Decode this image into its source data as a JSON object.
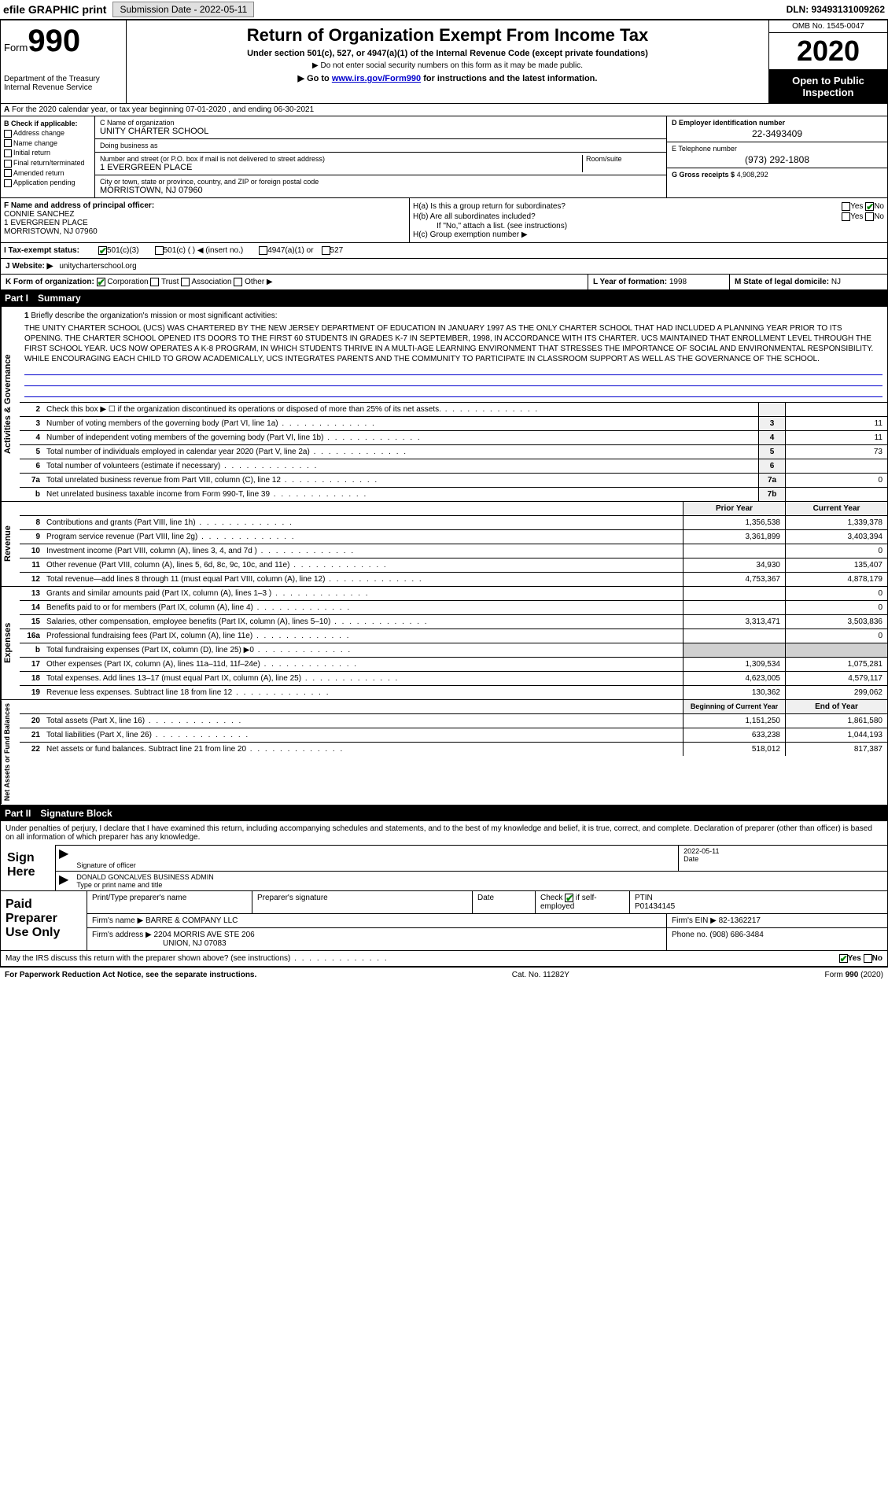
{
  "top": {
    "efile": "efile GRAPHIC print",
    "submission_label": "Submission Date - 2022-05-11",
    "dln": "DLN: 93493131009262"
  },
  "header": {
    "form_prefix": "Form",
    "form_num": "990",
    "dept": "Department of the Treasury\nInternal Revenue Service",
    "title": "Return of Organization Exempt From Income Tax",
    "subtitle": "Under section 501(c), 527, or 4947(a)(1) of the Internal Revenue Code (except private foundations)",
    "note1": "▶ Do not enter social security numbers on this form as it may be made public.",
    "note2_pre": "▶ Go to ",
    "note2_link": "www.irs.gov/Form990",
    "note2_post": " for instructions and the latest information.",
    "omb": "OMB No. 1545-0047",
    "year": "2020",
    "otp": "Open to Public Inspection"
  },
  "row_a": "For the 2020 calendar year, or tax year beginning 07-01-2020   , and ending 06-30-2021",
  "box_b": {
    "label": "B Check if applicable:",
    "items": [
      "Address change",
      "Name change",
      "Initial return",
      "Final return/terminated",
      "Amended return",
      "Application pending"
    ]
  },
  "box_c": {
    "name_label": "C Name of organization",
    "name": "UNITY CHARTER SCHOOL",
    "dba_label": "Doing business as",
    "dba": "",
    "addr_label": "Number and street (or P.O. box if mail is not delivered to street address)",
    "addr": "1 EVERGREEN PLACE",
    "room_label": "Room/suite",
    "city_label": "City or town, state or province, country, and ZIP or foreign postal code",
    "city": "MORRISTOWN, NJ  07960"
  },
  "box_d": {
    "label": "D Employer identification number",
    "val": "22-3493409"
  },
  "box_e": {
    "label": "E Telephone number",
    "val": "(973) 292-1808"
  },
  "box_g": {
    "label": "G Gross receipts $",
    "val": "4,908,292"
  },
  "box_f": {
    "label": "F  Name and address of principal officer:",
    "name": "CONNIE SANCHEZ",
    "addr1": "1 EVERGREEN PLACE",
    "addr2": "MORRISTOWN, NJ  07960"
  },
  "box_h": {
    "a": "H(a)  Is this a group return for subordinates?",
    "b": "H(b)  Are all subordinates included?",
    "b_note": "If \"No,\" attach a list. (see instructions)",
    "c": "H(c)  Group exemption number ▶",
    "yes": "Yes",
    "no": "No"
  },
  "row_i": {
    "label": "I  Tax-exempt status:",
    "opts": [
      "501(c)(3)",
      "501(c) (  ) ◀ (insert no.)",
      "4947(a)(1) or",
      "527"
    ]
  },
  "row_j": {
    "label": "J  Website: ▶",
    "val": "unitycharterschool.org"
  },
  "row_k": {
    "label": "K Form of organization:",
    "opts": [
      "Corporation",
      "Trust",
      "Association",
      "Other ▶"
    ]
  },
  "row_l": {
    "label": "L Year of formation:",
    "val": "1998"
  },
  "row_m": {
    "label": "M State of legal domicile:",
    "val": "NJ"
  },
  "part1": {
    "num": "Part I",
    "title": "Summary"
  },
  "mission": {
    "num": "1",
    "label": "Briefly describe the organization's mission or most significant activities:",
    "text": "THE UNITY CHARTER SCHOOL (UCS) WAS CHARTERED BY THE NEW JERSEY DEPARTMENT OF EDUCATION IN JANUARY 1997 AS THE ONLY CHARTER SCHOOL THAT HAD INCLUDED A PLANNING YEAR PRIOR TO ITS OPENING. THE CHARTER SCHOOL OPENED ITS DOORS TO THE FIRST 60 STUDENTS IN GRADES K-7 IN SEPTEMBER, 1998, IN ACCORDANCE WITH ITS CHARTER. UCS MAINTAINED THAT ENROLLMENT LEVEL THROUGH THE FIRST SCHOOL YEAR. UCS NOW OPERATES A K-8 PROGRAM, IN WHICH STUDENTS THRIVE IN A MULTI-AGE LEARNING ENVIRONMENT THAT STRESSES THE IMPORTANCE OF SOCIAL AND ENVIRONMENTAL RESPONSIBILITY. WHILE ENCOURAGING EACH CHILD TO GROW ACADEMICALLY, UCS INTEGRATES PARENTS AND THE COMMUNITY TO PARTICIPATE IN CLASSROOM SUPPORT AS WELL AS THE GOVERNANCE OF THE SCHOOL."
  },
  "lines_ag": [
    {
      "n": "2",
      "t": "Check this box ▶ ☐ if the organization discontinued its operations or disposed of more than 25% of its net assets.",
      "box": "",
      "v": ""
    },
    {
      "n": "3",
      "t": "Number of voting members of the governing body (Part VI, line 1a)",
      "box": "3",
      "v": "11"
    },
    {
      "n": "4",
      "t": "Number of independent voting members of the governing body (Part VI, line 1b)",
      "box": "4",
      "v": "11"
    },
    {
      "n": "5",
      "t": "Total number of individuals employed in calendar year 2020 (Part V, line 2a)",
      "box": "5",
      "v": "73"
    },
    {
      "n": "6",
      "t": "Total number of volunteers (estimate if necessary)",
      "box": "6",
      "v": ""
    },
    {
      "n": "7a",
      "t": "Total unrelated business revenue from Part VIII, column (C), line 12",
      "box": "7a",
      "v": "0"
    },
    {
      "n": "b",
      "t": "Net unrelated business taxable income from Form 990-T, line 39",
      "box": "7b",
      "v": ""
    }
  ],
  "col_headers": {
    "prior": "Prior Year",
    "current": "Current Year"
  },
  "lines_rev": [
    {
      "n": "8",
      "t": "Contributions and grants (Part VIII, line 1h)",
      "p": "1,356,538",
      "c": "1,339,378"
    },
    {
      "n": "9",
      "t": "Program service revenue (Part VIII, line 2g)",
      "p": "3,361,899",
      "c": "3,403,394"
    },
    {
      "n": "10",
      "t": "Investment income (Part VIII, column (A), lines 3, 4, and 7d )",
      "p": "",
      "c": "0"
    },
    {
      "n": "11",
      "t": "Other revenue (Part VIII, column (A), lines 5, 6d, 8c, 9c, 10c, and 11e)",
      "p": "34,930",
      "c": "135,407"
    },
    {
      "n": "12",
      "t": "Total revenue—add lines 8 through 11 (must equal Part VIII, column (A), line 12)",
      "p": "4,753,367",
      "c": "4,878,179"
    }
  ],
  "lines_exp": [
    {
      "n": "13",
      "t": "Grants and similar amounts paid (Part IX, column (A), lines 1–3 )",
      "p": "",
      "c": "0"
    },
    {
      "n": "14",
      "t": "Benefits paid to or for members (Part IX, column (A), line 4)",
      "p": "",
      "c": "0"
    },
    {
      "n": "15",
      "t": "Salaries, other compensation, employee benefits (Part IX, column (A), lines 5–10)",
      "p": "3,313,471",
      "c": "3,503,836"
    },
    {
      "n": "16a",
      "t": "Professional fundraising fees (Part IX, column (A), line 11e)",
      "p": "",
      "c": "0"
    },
    {
      "n": "b",
      "t": "Total fundraising expenses (Part IX, column (D), line 25) ▶0",
      "p": "—shaded—",
      "c": "—shaded—"
    },
    {
      "n": "17",
      "t": "Other expenses (Part IX, column (A), lines 11a–11d, 11f–24e)",
      "p": "1,309,534",
      "c": "1,075,281"
    },
    {
      "n": "18",
      "t": "Total expenses. Add lines 13–17 (must equal Part IX, column (A), line 25)",
      "p": "4,623,005",
      "c": "4,579,117"
    },
    {
      "n": "19",
      "t": "Revenue less expenses. Subtract line 18 from line 12",
      "p": "130,362",
      "c": "299,062"
    }
  ],
  "col_headers2": {
    "begin": "Beginning of Current Year",
    "end": "End of Year"
  },
  "lines_net": [
    {
      "n": "20",
      "t": "Total assets (Part X, line 16)",
      "p": "1,151,250",
      "c": "1,861,580"
    },
    {
      "n": "21",
      "t": "Total liabilities (Part X, line 26)",
      "p": "633,238",
      "c": "1,044,193"
    },
    {
      "n": "22",
      "t": "Net assets or fund balances. Subtract line 21 from line 20",
      "p": "518,012",
      "c": "817,387"
    }
  ],
  "side_tabs": {
    "ag": "Activities & Governance",
    "rev": "Revenue",
    "exp": "Expenses",
    "net": "Net Assets or Fund Balances"
  },
  "part2": {
    "num": "Part II",
    "title": "Signature Block"
  },
  "sig": {
    "decl": "Under penalties of perjury, I declare that I have examined this return, including accompanying schedules and statements, and to the best of my knowledge and belief, it is true, correct, and complete. Declaration of preparer (other than officer) is based on all information of which preparer has any knowledge.",
    "sign_here": "Sign Here",
    "sig_officer": "Signature of officer",
    "date_label": "Date",
    "date_val": "2022-05-11",
    "name_title": "DONALD GONCALVES  BUSINESS ADMIN",
    "name_title_label": "Type or print name and title"
  },
  "paid": {
    "label": "Paid Preparer Use Only",
    "h1": "Print/Type preparer's name",
    "h2": "Preparer's signature",
    "h3": "Date",
    "h4_a": "Check",
    "h4_b": "if self-employed",
    "ptin_label": "PTIN",
    "ptin": "P01434145",
    "firm_name_label": "Firm's name   ▶",
    "firm_name": "BARRE & COMPANY LLC",
    "firm_ein_label": "Firm's EIN ▶",
    "firm_ein": "82-1362217",
    "firm_addr_label": "Firm's address ▶",
    "firm_addr1": "2204 MORRIS AVE STE 206",
    "firm_addr2": "UNION, NJ  07083",
    "phone_label": "Phone no.",
    "phone": "(908) 686-3484"
  },
  "discuss": {
    "text": "May the IRS discuss this return with the preparer shown above? (see instructions)",
    "yes": "Yes",
    "no": "No"
  },
  "footer": {
    "pra": "For Paperwork Reduction Act Notice, see the separate instructions.",
    "cat": "Cat. No. 11282Y",
    "form": "Form 990 (2020)"
  }
}
